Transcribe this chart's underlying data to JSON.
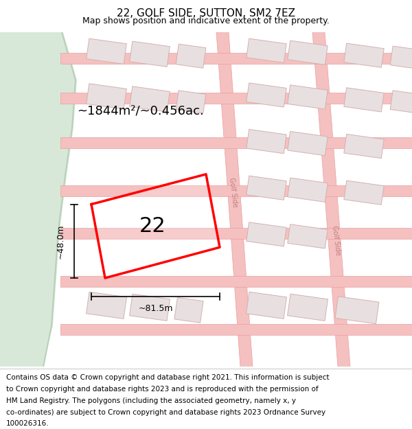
{
  "title": "22, GOLF SIDE, SUTTON, SM2 7EZ",
  "subtitle": "Map shows position and indicative extent of the property.",
  "footer_lines": [
    "Contains OS data © Crown copyright and database right 2021. This information is subject",
    "to Crown copyright and database rights 2023 and is reproduced with the permission of",
    "HM Land Registry. The polygons (including the associated geometry, namely x, y",
    "co-ordinates) are subject to Crown copyright and database rights 2023 Ordnance Survey",
    "100026316."
  ],
  "area_label": "~1844m²/~0.456ac.",
  "number_label": "22",
  "width_label": "~81.5m",
  "height_label": "~48.0m",
  "green_area_color": "#d8e8d8",
  "map_bg": "#ffffff",
  "road_color": "#f5c0c0",
  "road_outline": "#e8a0a0",
  "plot_color": "#ff0000",
  "building_color": "#e8e0e0",
  "building_outline": "#d4b0b0",
  "title_fontsize": 11,
  "subtitle_fontsize": 9,
  "footer_fontsize": 7.5,
  "road_label_color": "#c08080",
  "green_border_color": "#b8d0b8"
}
